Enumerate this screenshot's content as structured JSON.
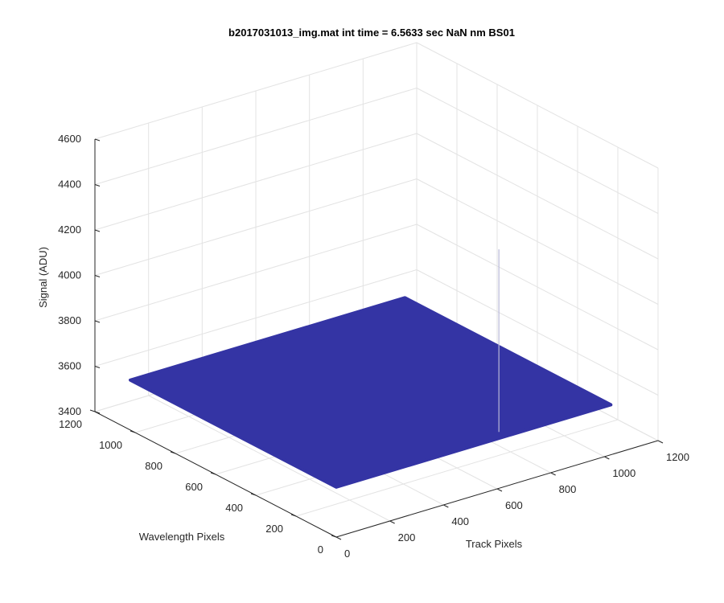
{
  "chart_data": {
    "type": "surface3d",
    "title": "b2017031013_img.mat int time = 6.5633 sec  NaN nm BS01",
    "xlabel": "Track Pixels",
    "ylabel": "Wavelength Pixels",
    "zlabel": "Signal (ADU)",
    "xlim": [
      0,
      1200
    ],
    "ylim": [
      0,
      1200
    ],
    "zlim": [
      3400,
      4600
    ],
    "xticks": [
      0,
      200,
      400,
      600,
      800,
      1000,
      1200
    ],
    "yticks": [
      0,
      200,
      400,
      600,
      800,
      1000,
      1200
    ],
    "zticks": [
      3400,
      3600,
      3800,
      4000,
      4200,
      4400,
      4600
    ],
    "surface_extent": [
      1024,
      1024
    ],
    "surface_z": 3620,
    "spike": {
      "x": 800,
      "y": 258,
      "z": 4265
    },
    "color": "#3434a4",
    "grid": true
  }
}
